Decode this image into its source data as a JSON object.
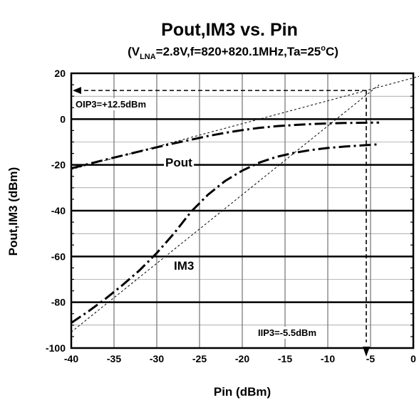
{
  "chart_data": {
    "type": "line",
    "title": "Pout,IM3 vs. Pin",
    "subtitle": {
      "prefix": "(V",
      "sub": "LNA",
      "mid": "=2.8V,f=820+820.1MHz,Ta=25",
      "sup": "o",
      "suffix": "C)"
    },
    "xlabel": "Pin (dBm)",
    "ylabel": "Pout,IM3 (dBm)",
    "xlim": [
      -40,
      0
    ],
    "ylim": [
      -100,
      20
    ],
    "xticks": [
      -40,
      -35,
      -30,
      -25,
      -20,
      -15,
      -10,
      -5,
      0
    ],
    "yticks": [
      -100,
      -80,
      -60,
      -40,
      -20,
      0,
      20
    ],
    "grid": true,
    "series": [
      {
        "name": "Pout",
        "style": "dash-dot",
        "x": [
          -40,
          -38,
          -36,
          -34,
          -32,
          -30,
          -28,
          -26,
          -24,
          -22,
          -20,
          -18,
          -16,
          -14,
          -12,
          -10,
          -8,
          -6,
          -4
        ],
        "y": [
          -21.5,
          -19.6,
          -17.7,
          -15.9,
          -14.1,
          -12.3,
          -10.6,
          -9.0,
          -7.4,
          -6.0,
          -4.8,
          -3.8,
          -3.1,
          -2.6,
          -2.2,
          -1.9,
          -1.7,
          -1.6,
          -1.5
        ]
      },
      {
        "name": "IM3",
        "style": "dash-dot",
        "x": [
          -40,
          -38,
          -36,
          -34,
          -32,
          -30,
          -28,
          -26,
          -24,
          -22,
          -20,
          -18,
          -16,
          -14,
          -12,
          -10,
          -8,
          -6,
          -4
        ],
        "y": [
          -89.0,
          -84.0,
          -78.5,
          -72.5,
          -66.0,
          -58.5,
          -50.0,
          -40.5,
          -33.0,
          -27.0,
          -22.5,
          -19.0,
          -16.5,
          -14.8,
          -13.5,
          -12.6,
          -12.0,
          -11.5,
          -11.0
        ]
      },
      {
        "name": "Pout extrapolation",
        "style": "thin-dash",
        "x": [
          -40,
          2
        ],
        "y": [
          -22,
          20
        ]
      },
      {
        "name": "IM3 extrapolation",
        "style": "thin-dash",
        "x": [
          -40,
          -4
        ],
        "y": [
          -93,
          15
        ]
      }
    ],
    "annotations": {
      "oip3_label": "OIP3=+12.5dBm",
      "iip3_label": "IIP3=-5.5dBm",
      "pout_label": "Pout",
      "im3_label": "IM3",
      "oip3_value": 12.5,
      "iip3_value": -5.5
    }
  }
}
